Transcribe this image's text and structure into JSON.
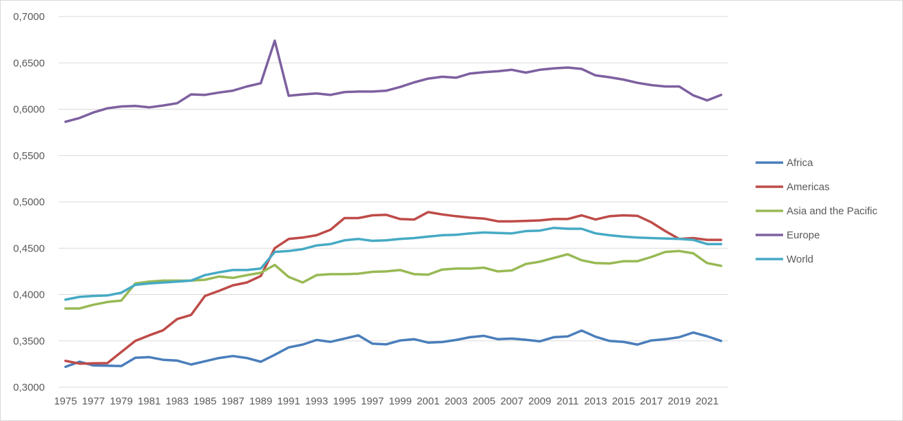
{
  "chart_data": {
    "type": "line",
    "title": "",
    "xlabel": "",
    "ylabel": "",
    "ylim": [
      0.3,
      0.7
    ],
    "y_ticks": [
      "0,3000",
      "0,3500",
      "0,4000",
      "0,4500",
      "0,5000",
      "0,5500",
      "0,6000",
      "0,6500",
      "0,7000"
    ],
    "x_tick_labels": [
      "1975",
      "1977",
      "1979",
      "1981",
      "1983",
      "1985",
      "1987",
      "1989",
      "1991",
      "1993",
      "1995",
      "1997",
      "1999",
      "2001",
      "2003",
      "2005",
      "2007",
      "2009",
      "2011",
      "2013",
      "2015",
      "2017",
      "2019",
      "2021"
    ],
    "x": [
      1975,
      1976,
      1977,
      1978,
      1979,
      1980,
      1981,
      1982,
      1983,
      1984,
      1985,
      1986,
      1987,
      1988,
      1989,
      1990,
      1991,
      1992,
      1993,
      1994,
      1995,
      1996,
      1997,
      1998,
      1999,
      2000,
      2001,
      2002,
      2003,
      2004,
      2005,
      2006,
      2007,
      2008,
      2009,
      2010,
      2011,
      2012,
      2013,
      2014,
      2015,
      2016,
      2017,
      2018,
      2019,
      2020,
      2021,
      2022
    ],
    "grid": "horizontal",
    "legend_position": "right",
    "series": [
      {
        "name": "Africa",
        "color": "#4a7ebb",
        "values": [
          0.322,
          0.3275,
          0.3235,
          0.3233,
          0.3228,
          0.3318,
          0.3325,
          0.3296,
          0.3288,
          0.3245,
          0.328,
          0.3315,
          0.3337,
          0.3315,
          0.3275,
          0.335,
          0.343,
          0.346,
          0.351,
          0.349,
          0.3525,
          0.356,
          0.347,
          0.3463,
          0.3505,
          0.3518,
          0.3482,
          0.3488,
          0.351,
          0.354,
          0.3555,
          0.3518,
          0.3525,
          0.3512,
          0.3495,
          0.354,
          0.3548,
          0.3612,
          0.3545,
          0.35,
          0.349,
          0.346,
          0.3505,
          0.3518,
          0.354,
          0.359,
          0.355,
          0.35
        ]
      },
      {
        "name": "Americas",
        "color": "#be4b48",
        "values": [
          0.3285,
          0.3255,
          0.3258,
          0.326,
          0.338,
          0.35,
          0.356,
          0.3615,
          0.3735,
          0.378,
          0.3985,
          0.404,
          0.41,
          0.413,
          0.42,
          0.45,
          0.46,
          0.4615,
          0.464,
          0.47,
          0.4825,
          0.4825,
          0.4855,
          0.486,
          0.4815,
          0.481,
          0.489,
          0.4865,
          0.4845,
          0.483,
          0.482,
          0.479,
          0.479,
          0.4795,
          0.48,
          0.4815,
          0.4815,
          0.4855,
          0.481,
          0.4845,
          0.4855,
          0.485,
          0.478,
          0.4685,
          0.46,
          0.461,
          0.459,
          0.459
        ]
      },
      {
        "name": "Asia and the Pacific",
        "color": "#98b954",
        "values": [
          0.385,
          0.385,
          0.389,
          0.392,
          0.3935,
          0.412,
          0.414,
          0.415,
          0.415,
          0.415,
          0.416,
          0.4195,
          0.418,
          0.421,
          0.4235,
          0.432,
          0.419,
          0.413,
          0.421,
          0.422,
          0.422,
          0.4225,
          0.4245,
          0.425,
          0.4265,
          0.422,
          0.4215,
          0.427,
          0.428,
          0.428,
          0.429,
          0.425,
          0.426,
          0.433,
          0.4355,
          0.4395,
          0.4435,
          0.437,
          0.434,
          0.4335,
          0.436,
          0.436,
          0.4405,
          0.446,
          0.447,
          0.4445,
          0.434,
          0.431
        ]
      },
      {
        "name": "Europe",
        "color": "#7d60a0",
        "values": [
          0.5865,
          0.5905,
          0.5965,
          0.601,
          0.603,
          0.6035,
          0.602,
          0.604,
          0.6065,
          0.616,
          0.6155,
          0.618,
          0.62,
          0.6245,
          0.628,
          0.674,
          0.6145,
          0.616,
          0.617,
          0.6155,
          0.6185,
          0.619,
          0.619,
          0.62,
          0.624,
          0.629,
          0.633,
          0.635,
          0.634,
          0.6385,
          0.64,
          0.641,
          0.6425,
          0.6395,
          0.6425,
          0.644,
          0.645,
          0.6435,
          0.6365,
          0.6345,
          0.632,
          0.6285,
          0.626,
          0.6245,
          0.6245,
          0.615,
          0.6095,
          0.6155
        ]
      },
      {
        "name": "World",
        "color": "#46aac5",
        "values": [
          0.3945,
          0.3975,
          0.3985,
          0.399,
          0.402,
          0.4105,
          0.412,
          0.413,
          0.414,
          0.415,
          0.421,
          0.424,
          0.4265,
          0.4265,
          0.428,
          0.446,
          0.447,
          0.449,
          0.453,
          0.4545,
          0.4585,
          0.46,
          0.458,
          0.4585,
          0.46,
          0.461,
          0.4625,
          0.464,
          0.4645,
          0.466,
          0.467,
          0.4665,
          0.466,
          0.4685,
          0.469,
          0.472,
          0.471,
          0.471,
          0.466,
          0.464,
          0.4625,
          0.4615,
          0.461,
          0.4605,
          0.46,
          0.459,
          0.4545,
          0.4545
        ]
      }
    ]
  }
}
